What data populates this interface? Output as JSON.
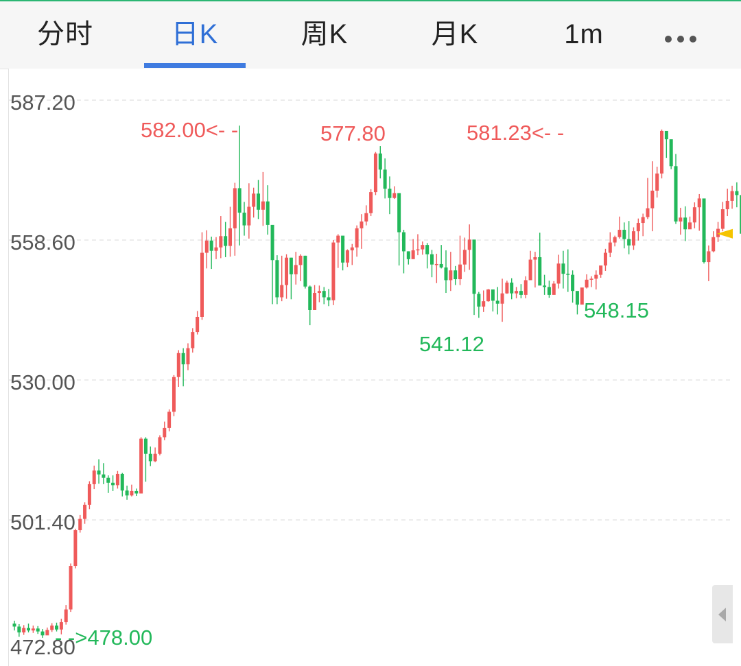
{
  "tabs": [
    {
      "label": "分时",
      "active": false
    },
    {
      "label": "日K",
      "active": true
    },
    {
      "label": "周K",
      "active": false
    },
    {
      "label": "月K",
      "active": false
    },
    {
      "label": "1m",
      "active": false
    }
  ],
  "more_icon": "more-horizontal-icon",
  "colors": {
    "up": "#ef5a5a",
    "down": "#22b85a",
    "accent": "#3f7be0",
    "grid": "#e6e6e6",
    "price_marker": "#f5c400"
  },
  "chart_data": {
    "type": "candlestick",
    "y_ticks": [
      "587.20",
      "558.60",
      "530.00",
      "501.40",
      "472.80"
    ],
    "ylim": [
      472.8,
      587.2
    ],
    "grid": "dashed horizontal",
    "annotations": [
      {
        "text": "582.00<- -",
        "type": "high",
        "value": 582.0
      },
      {
        "text": "577.80",
        "type": "high",
        "value": 577.8
      },
      {
        "text": "581.23<- -",
        "type": "high",
        "value": 581.23
      },
      {
        "text": "541.12",
        "type": "low",
        "value": 541.12
      },
      {
        "text": "548.15",
        "type": "low",
        "value": 548.15
      },
      {
        "text": "- ->478.00",
        "type": "low",
        "value": 478.0
      }
    ],
    "last_price_marker": "right-edge",
    "candles": [
      [
        480.2,
        479.6,
        480.8,
        478.8
      ],
      [
        479.6,
        478.4,
        480.1,
        477.5
      ],
      [
        478.4,
        479.3,
        479.9,
        477.9
      ],
      [
        479.3,
        478.8,
        480.2,
        478.4
      ],
      [
        478.8,
        479.2,
        479.8,
        478.3
      ],
      [
        479.2,
        478.6,
        479.7,
        478.1
      ],
      [
        478.6,
        477.8,
        479.1,
        477.3
      ],
      [
        477.8,
        478.9,
        479.4,
        478.0
      ],
      [
        478.9,
        479.8,
        480.3,
        478.5
      ],
      [
        479.8,
        479.0,
        480.4,
        478.6
      ],
      [
        479.0,
        480.5,
        481.2,
        478.0
      ],
      [
        480.5,
        483.1,
        484.0,
        480.0
      ],
      [
        483.1,
        492.0,
        492.5,
        482.6
      ],
      [
        492.0,
        499.3,
        499.6,
        491.5
      ],
      [
        499.3,
        501.6,
        502.4,
        498.8
      ],
      [
        501.6,
        504.5,
        505.0,
        500.6
      ],
      [
        504.5,
        508.7,
        509.3,
        503.6
      ],
      [
        508.7,
        511.5,
        512.5,
        507.7
      ],
      [
        511.5,
        510.7,
        513.8,
        508.8
      ],
      [
        510.7,
        510.0,
        513.0,
        508.7
      ],
      [
        510.0,
        509.0,
        510.5,
        506.9
      ],
      [
        509.0,
        508.5,
        510.5,
        507.3
      ],
      [
        508.5,
        510.8,
        511.4,
        507.8
      ],
      [
        510.8,
        507.4,
        511.0,
        506.2
      ],
      [
        507.4,
        506.4,
        508.4,
        505.5
      ],
      [
        506.4,
        507.3,
        508.6,
        506.2
      ],
      [
        507.3,
        506.8,
        507.8,
        506.3
      ],
      [
        506.8,
        518.0,
        518.3,
        506.8
      ],
      [
        518.0,
        514.9,
        518.3,
        509.2
      ],
      [
        514.9,
        513.4,
        516.4,
        512.4
      ],
      [
        513.4,
        514.9,
        516.2,
        513.2
      ],
      [
        514.9,
        518.3,
        518.7,
        514.6
      ],
      [
        518.3,
        520.2,
        521.5,
        517.7
      ],
      [
        520.2,
        523.5,
        524.0,
        519.5
      ],
      [
        523.5,
        530.6,
        531.0,
        522.6
      ],
      [
        530.6,
        535.5,
        536.1,
        528.6
      ],
      [
        535.5,
        533.2,
        536.5,
        528.7
      ],
      [
        533.2,
        536.5,
        537.5,
        532.0
      ],
      [
        536.5,
        539.8,
        540.6,
        535.6
      ],
      [
        539.8,
        542.9,
        544.1,
        539.3
      ],
      [
        542.9,
        556.0,
        560.2,
        542.3
      ],
      [
        556.0,
        558.5,
        560.6,
        552.8
      ],
      [
        558.5,
        556.4,
        559.3,
        552.7
      ],
      [
        556.4,
        557.1,
        559.2,
        554.7
      ],
      [
        557.1,
        559.4,
        563.5,
        554.9
      ],
      [
        559.4,
        557.4,
        562.3,
        555.1
      ],
      [
        557.4,
        561.0,
        565.4,
        555.2
      ],
      [
        561.0,
        569.2,
        570.3,
        555.4
      ],
      [
        569.2,
        564.2,
        582.0,
        557.5
      ],
      [
        564.2,
        561.6,
        566.4,
        559.5
      ],
      [
        561.6,
        565.4,
        570.2,
        558.9
      ],
      [
        565.4,
        568.1,
        569.3,
        563.2
      ],
      [
        568.1,
        564.8,
        570.9,
        562.9
      ],
      [
        564.8,
        566.5,
        572.5,
        561.5
      ],
      [
        566.5,
        561.7,
        569.8,
        559.7
      ],
      [
        561.7,
        554.5,
        558.5,
        545.5
      ],
      [
        554.5,
        546.9,
        555.5,
        545.5
      ],
      [
        546.9,
        549.4,
        555.4,
        546.1
      ],
      [
        549.4,
        555.0,
        555.7,
        546.6
      ],
      [
        555.0,
        551.6,
        555.0,
        546.5
      ],
      [
        551.6,
        553.5,
        556.2,
        549.5
      ],
      [
        553.5,
        555.4,
        555.7,
        550.2
      ],
      [
        555.4,
        549.1,
        555.4,
        548.7
      ],
      [
        549.1,
        544.3,
        549.3,
        541.2
      ],
      [
        544.3,
        547.8,
        549.4,
        546.8
      ],
      [
        547.8,
        548.2,
        549.3,
        545.9
      ],
      [
        548.2,
        546.9,
        549.0,
        545.5
      ],
      [
        546.9,
        546.3,
        548.6,
        545.1
      ],
      [
        546.3,
        558.1,
        558.6,
        545.3
      ],
      [
        558.1,
        559.5,
        559.8,
        552.9
      ],
      [
        559.5,
        554.0,
        557.9,
        552.4
      ],
      [
        554.0,
        556.5,
        556.7,
        553.1
      ],
      [
        556.5,
        557.1,
        557.8,
        553.5
      ],
      [
        557.1,
        561.0,
        561.6,
        555.2
      ],
      [
        561.0,
        562.4,
        563.9,
        556.8
      ],
      [
        562.4,
        564.1,
        565.7,
        561.6
      ],
      [
        564.1,
        568.4,
        569.0,
        563.5
      ],
      [
        568.4,
        576.3,
        576.6,
        567.8
      ],
      [
        576.3,
        573.0,
        577.8,
        571.2
      ],
      [
        573.0,
        569.1,
        575.3,
        567.1
      ],
      [
        569.1,
        567.2,
        571.6,
        563.9
      ],
      [
        567.2,
        568.2,
        569.6,
        567.0
      ],
      [
        568.2,
        560.2,
        568.2,
        553.4
      ],
      [
        560.2,
        556.3,
        560.7,
        551.8
      ],
      [
        556.3,
        554.7,
        556.3,
        553.6
      ],
      [
        554.7,
        556.5,
        558.8,
        555.1
      ],
      [
        556.5,
        556.7,
        559.8,
        555.5
      ],
      [
        556.7,
        557.6,
        558.3,
        555.6
      ],
      [
        557.6,
        555.7,
        558.0,
        552.8
      ],
      [
        555.7,
        553.6,
        556.6,
        551.0
      ],
      [
        553.6,
        553.7,
        555.8,
        549.8
      ],
      [
        553.7,
        553.0,
        557.6,
        552.8
      ],
      [
        553.0,
        550.4,
        556.5,
        547.8
      ],
      [
        550.4,
        552.4,
        556.2,
        548.2
      ],
      [
        552.4,
        550.6,
        553.3,
        549.4
      ],
      [
        550.6,
        553.6,
        559.5,
        549.4
      ],
      [
        553.6,
        556.6,
        559.1,
        552.1
      ],
      [
        556.6,
        558.7,
        561.8,
        552.5
      ],
      [
        558.7,
        547.6,
        553.9,
        543.3
      ],
      [
        547.6,
        545.0,
        548.0,
        542.7
      ],
      [
        545.0,
        546.1,
        548.3,
        543.9
      ],
      [
        546.1,
        548.5,
        548.6,
        546.0
      ],
      [
        548.5,
        546.2,
        548.3,
        544.0
      ],
      [
        546.2,
        545.6,
        549.0,
        543.4
      ],
      [
        545.6,
        547.7,
        550.7,
        541.9
      ],
      [
        547.7,
        549.9,
        550.3,
        547.6
      ],
      [
        549.9,
        547.7,
        550.8,
        546.5
      ],
      [
        547.7,
        548.2,
        549.0,
        546.7
      ],
      [
        548.2,
        547.4,
        549.6,
        546.7
      ],
      [
        547.4,
        550.4,
        551.2,
        546.7
      ],
      [
        550.4,
        554.6,
        556.4,
        550.6
      ],
      [
        554.6,
        555.1,
        556.2,
        548.9
      ],
      [
        555.1,
        549.3,
        560.1,
        549.6
      ],
      [
        549.3,
        549.0,
        551.5,
        547.4
      ],
      [
        549.0,
        547.4,
        550.3,
        546.8
      ],
      [
        547.4,
        549.7,
        550.2,
        548.1
      ],
      [
        549.7,
        553.8,
        555.6,
        548.7
      ],
      [
        553.8,
        551.7,
        556.4,
        548.7
      ],
      [
        551.7,
        551.5,
        556.7,
        548.0
      ],
      [
        551.5,
        548.2,
        552.4,
        545.8
      ],
      [
        548.2,
        545.4,
        548.0,
        543.4
      ],
      [
        545.4,
        548.9,
        548.2,
        548.0
      ],
      [
        548.9,
        550.5,
        551.6,
        548.7
      ],
      [
        550.5,
        550.7,
        551.2,
        549.0
      ],
      [
        550.7,
        551.5,
        552.4,
        548.5
      ],
      [
        551.5,
        553.4,
        553.3,
        550.9
      ],
      [
        553.4,
        556.0,
        556.8,
        552.3
      ],
      [
        556.0,
        558.1,
        560.2,
        555.1
      ],
      [
        558.1,
        559.2,
        559.5,
        557.3
      ],
      [
        559.2,
        560.7,
        563.4,
        558.9
      ],
      [
        560.7,
        558.8,
        562.2,
        556.9
      ],
      [
        558.8,
        557.5,
        562.5,
        555.7
      ],
      [
        557.5,
        560.4,
        561.2,
        556.6
      ],
      [
        560.4,
        562.1,
        563.0,
        558.5
      ],
      [
        562.1,
        563.3,
        564.0,
        559.4
      ],
      [
        563.3,
        565.1,
        571.3,
        562.9
      ],
      [
        565.1,
        568.7,
        574.7,
        560.4
      ],
      [
        568.7,
        572.2,
        573.6,
        567.3
      ],
      [
        572.2,
        580.9,
        581.2,
        571.2
      ],
      [
        580.9,
        579.2,
        580.3,
        575.4
      ],
      [
        579.2,
        573.7,
        578.2,
        573.1
      ],
      [
        573.7,
        562.4,
        576.2,
        561.9
      ],
      [
        562.4,
        563.2,
        565.2,
        559.7
      ],
      [
        563.2,
        560.8,
        565.5,
        558.4
      ],
      [
        560.8,
        562.2,
        563.4,
        561.5
      ],
      [
        562.2,
        565.3,
        566.3,
        561.0
      ],
      [
        565.3,
        567.1,
        568.0,
        560.5
      ],
      [
        567.1,
        554.1,
        560.5,
        553.8
      ],
      [
        554.1,
        556.3,
        557.5,
        550.2
      ],
      [
        556.3,
        559.2,
        560.4,
        556.1
      ],
      [
        559.2,
        560.9,
        562.3,
        558.2
      ],
      [
        560.9,
        564.9,
        566.4,
        560.4
      ],
      [
        564.9,
        566.6,
        569.1,
        563.5
      ],
      [
        566.6,
        568.6,
        569.7,
        565.0
      ],
      [
        568.6,
        567.8,
        570.4,
        565.3
      ],
      [
        567.8,
        559.9,
        568.9,
        556.1
      ]
    ]
  }
}
